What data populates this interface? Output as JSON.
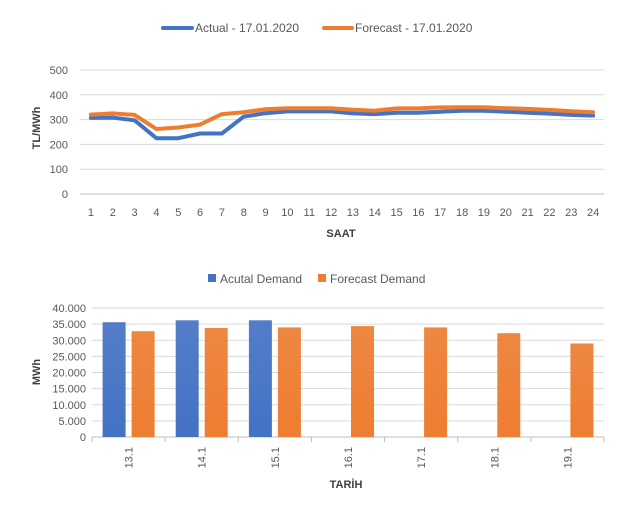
{
  "chart_data": [
    {
      "type": "line",
      "title": "",
      "xlabel": "SAAT",
      "ylabel": "TL/MWh",
      "ylim": [
        0,
        500
      ],
      "yticks": [
        "0",
        "100",
        "200",
        "300",
        "400",
        "500"
      ],
      "grid": true,
      "legend": "top",
      "x": [
        1,
        2,
        3,
        4,
        5,
        6,
        7,
        8,
        9,
        10,
        11,
        12,
        13,
        14,
        15,
        16,
        17,
        18,
        19,
        20,
        21,
        22,
        23,
        24
      ],
      "series": [
        {
          "name": "Actual - 17.01.2020",
          "color": "#4472c4",
          "values": [
            307,
            308,
            297,
            225,
            225,
            244,
            244,
            312,
            326,
            333,
            333,
            333,
            325,
            322,
            328,
            328,
            332,
            336,
            336,
            332,
            328,
            324,
            319,
            316
          ]
        },
        {
          "name": "Forecast - 17.01.2020",
          "color": "#ed7d31",
          "values": [
            320,
            325,
            319,
            262,
            268,
            280,
            322,
            330,
            342,
            346,
            346,
            346,
            340,
            336,
            345,
            345,
            349,
            350,
            350,
            346,
            343,
            339,
            334,
            330
          ]
        }
      ]
    },
    {
      "type": "bar",
      "title": "",
      "xlabel": "TARİH",
      "ylabel": "MWh",
      "ylim": [
        0,
        40000
      ],
      "yticks": [
        "0",
        "5.000",
        "10.000",
        "15.000",
        "20.000",
        "25.000",
        "30.000",
        "35.000",
        "40.000"
      ],
      "grid": true,
      "legend": "top",
      "categories": [
        "13.1",
        "14.1",
        "15.1",
        "16.1",
        "17.1",
        "18.1",
        "19.1"
      ],
      "series": [
        {
          "name": "Acutal Demand",
          "color": "#4472c4",
          "values": [
            35600,
            36200,
            36200,
            null,
            null,
            null,
            null
          ]
        },
        {
          "name": "Forecast Demand",
          "color": "#ed7d31",
          "values": [
            32800,
            33800,
            34000,
            34400,
            34000,
            32200,
            29000
          ]
        }
      ]
    }
  ]
}
